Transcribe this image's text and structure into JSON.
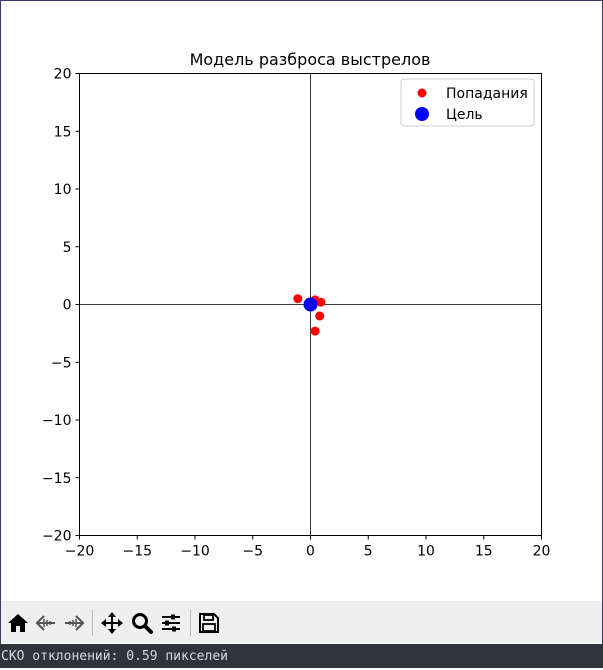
{
  "chart_data": {
    "type": "scatter",
    "title": "Модель разброса выстрелов",
    "xlabel": "",
    "ylabel": "",
    "xlim": [
      -20,
      20
    ],
    "ylim": [
      -20,
      20
    ],
    "x_ticks": [
      -20,
      -15,
      -10,
      -5,
      0,
      5,
      10,
      15,
      20
    ],
    "y_ticks": [
      -20,
      -15,
      -10,
      -5,
      0,
      5,
      10,
      15,
      20
    ],
    "x_tick_labels": [
      "−20",
      "−15",
      "−10",
      "−5",
      "0",
      "5",
      "10",
      "15",
      "20"
    ],
    "y_tick_labels": [
      "−20",
      "−15",
      "−10",
      "−5",
      "0",
      "5",
      "10",
      "15",
      "20"
    ],
    "grid": false,
    "axis_lines_at_zero": true,
    "legend_position": "top-right",
    "series": [
      {
        "name": "Попадания",
        "color": "#ff0000",
        "points": [
          {
            "x": -1.1,
            "y": 0.5
          },
          {
            "x": 0.4,
            "y": 0.4
          },
          {
            "x": 0.9,
            "y": 0.2
          },
          {
            "x": 0.8,
            "y": -1.0
          },
          {
            "x": 0.4,
            "y": -2.3
          }
        ]
      },
      {
        "name": "Цель",
        "color": "#0000ff",
        "points": [
          {
            "x": 0,
            "y": 0
          }
        ]
      }
    ]
  },
  "toolbar": {
    "icons": [
      "home-icon",
      "back-arrow-icon",
      "forward-arrow-icon",
      "pan-icon",
      "zoom-icon",
      "configure-subplots-icon",
      "save-icon"
    ]
  },
  "status": {
    "text": "СКО отклонений: 0.59 пикселей"
  }
}
